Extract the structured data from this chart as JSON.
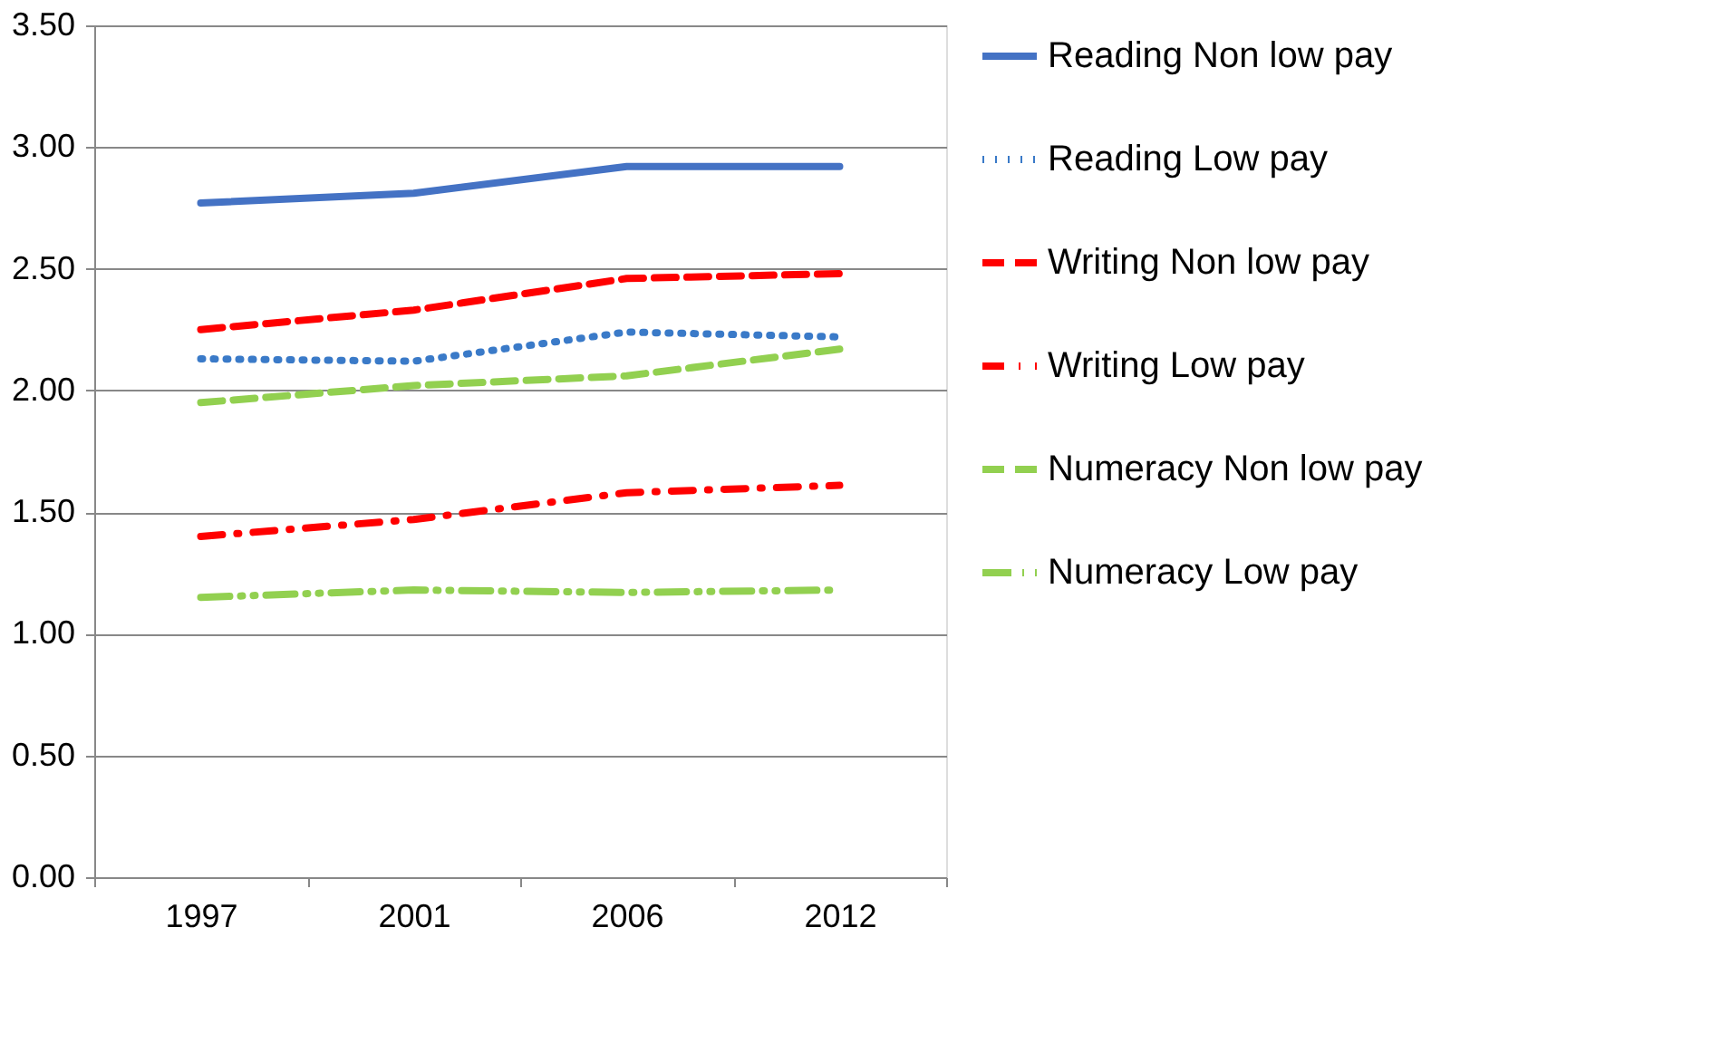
{
  "chart_data": {
    "type": "line",
    "categories": [
      "1997",
      "2001",
      "2006",
      "2012"
    ],
    "series": [
      {
        "name": "Reading Non low pay",
        "color": "#4472c4",
        "line_style": "solid",
        "values": [
          2.77,
          2.81,
          2.92,
          2.92
        ]
      },
      {
        "name": "Reading Low pay",
        "color": "#3a7ac8",
        "line_style": "dotted",
        "values": [
          2.13,
          2.12,
          2.24,
          2.22
        ]
      },
      {
        "name": "Writing Non low pay",
        "color": "#ff0000",
        "line_style": "dashed",
        "values": [
          2.25,
          2.33,
          2.46,
          2.48
        ]
      },
      {
        "name": "Writing Low pay",
        "color": "#ff0000",
        "line_style": "dashdot",
        "values": [
          1.4,
          1.47,
          1.58,
          1.61
        ]
      },
      {
        "name": "Numeracy Non low pay",
        "color": "#92d050",
        "line_style": "dashed",
        "values": [
          1.95,
          2.02,
          2.06,
          2.17
        ]
      },
      {
        "name": "Numeracy Low pay",
        "color": "#92d050",
        "line_style": "dashdotdot",
        "values": [
          1.15,
          1.18,
          1.17,
          1.18
        ]
      }
    ],
    "ylim": [
      0,
      3.5
    ],
    "yticks": [
      {
        "value": 0,
        "label": "0.00"
      },
      {
        "value": 0.5,
        "label": "0.50"
      },
      {
        "value": 1,
        "label": "1.00"
      },
      {
        "value": 1.5,
        "label": "1.50"
      },
      {
        "value": 2,
        "label": "2.00"
      },
      {
        "value": 2.5,
        "label": "2.50"
      },
      {
        "value": 3,
        "label": "3.00"
      },
      {
        "value": 3.5,
        "label": "3.50"
      }
    ],
    "grid": "y",
    "legend": "right",
    "marker": "none"
  }
}
